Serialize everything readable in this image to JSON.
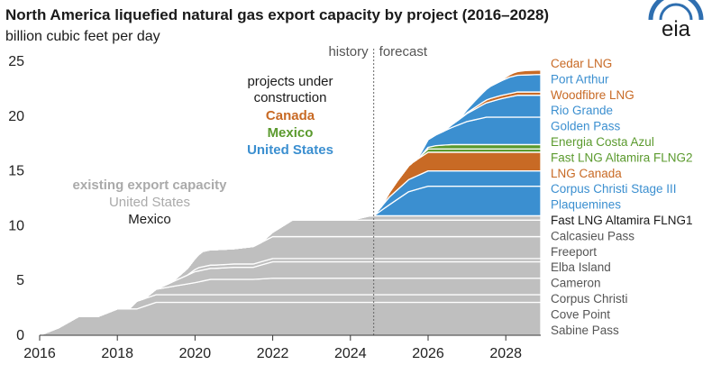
{
  "chart_data": {
    "type": "area",
    "title": "North America liquefied natural gas export capacity by project (2016–2028)",
    "subtitle": "billion cubic feet per day",
    "xlabel": "",
    "ylabel": "",
    "xlim": [
      2016,
      2028.9
    ],
    "ylim": [
      0,
      25
    ],
    "x_ticks": [
      2016,
      2018,
      2020,
      2022,
      2024,
      2026,
      2028
    ],
    "y_ticks": [
      0,
      5,
      10,
      15,
      20,
      25
    ],
    "grid": false,
    "history_label": "history",
    "forecast_label": "forecast",
    "forecast_start": 2024.6,
    "logo": "eia",
    "annotations": {
      "existing_title": "existing export capacity",
      "existing_us": "United States",
      "existing_mexico": "Mexico",
      "construction_title_1": "projects under",
      "construction_title_2": "construction",
      "construction_canada": "Canada",
      "construction_mexico": "Mexico",
      "construction_us": "United States"
    },
    "colors": {
      "existing": "#bfbfbf",
      "canada": "#c86a25",
      "mexico": "#5b9a2e",
      "united_states": "#3b8fd0",
      "existing_text": "#aaaaaa",
      "mexico_existing_text": "#1a1a1a"
    },
    "series": [
      {
        "name": "Sabine Pass",
        "group": "existing",
        "country": "united_states",
        "points": [
          [
            2016.0,
            0
          ],
          [
            2016.5,
            0.7
          ],
          [
            2017.0,
            1.7
          ],
          [
            2017.5,
            1.7
          ],
          [
            2018.0,
            2.4
          ],
          [
            2018.5,
            2.4
          ],
          [
            2019.0,
            3.0
          ],
          [
            2028.9,
            3.0
          ]
        ]
      },
      {
        "name": "Cove Point",
        "group": "existing",
        "country": "united_states",
        "points": [
          [
            2016.0,
            0
          ],
          [
            2018.3,
            0
          ],
          [
            2018.5,
            0.7
          ],
          [
            2019.0,
            0.7
          ],
          [
            2028.9,
            0.7
          ]
        ]
      },
      {
        "name": "Corpus Christi",
        "group": "existing",
        "country": "united_states",
        "points": [
          [
            2016.0,
            0
          ],
          [
            2018.7,
            0
          ],
          [
            2019.0,
            0.5
          ],
          [
            2019.5,
            0.8
          ],
          [
            2020.0,
            1.1
          ],
          [
            2020.4,
            1.4
          ],
          [
            2021.0,
            1.4
          ],
          [
            2021.5,
            1.4
          ],
          [
            2022.0,
            1.5
          ],
          [
            2028.9,
            1.5
          ]
        ]
      },
      {
        "name": "Cameron",
        "group": "existing",
        "country": "united_states",
        "points": [
          [
            2016.0,
            0
          ],
          [
            2019.0,
            0
          ],
          [
            2019.5,
            0.5
          ],
          [
            2020.0,
            1.0
          ],
          [
            2020.5,
            1.0
          ],
          [
            2021.0,
            1.1
          ],
          [
            2021.5,
            1.1
          ],
          [
            2022.0,
            1.5
          ],
          [
            2028.9,
            1.5
          ]
        ]
      },
      {
        "name": "Elba Island",
        "group": "existing",
        "country": "united_states",
        "points": [
          [
            2016.0,
            0
          ],
          [
            2019.8,
            0
          ],
          [
            2020.1,
            0.3
          ],
          [
            2028.9,
            0.3
          ]
        ]
      },
      {
        "name": "Freeport",
        "group": "existing",
        "country": "united_states",
        "points": [
          [
            2016.0,
            0
          ],
          [
            2019.4,
            0
          ],
          [
            2019.8,
            0.6
          ],
          [
            2020.2,
            1.4
          ],
          [
            2021.0,
            1.4
          ],
          [
            2021.5,
            1.6
          ],
          [
            2022.0,
            2.0
          ],
          [
            2028.9,
            2.0
          ]
        ]
      },
      {
        "name": "Calcasieu Pass",
        "group": "existing",
        "country": "united_states",
        "points": [
          [
            2016.0,
            0
          ],
          [
            2021.7,
            0
          ],
          [
            2022.0,
            0.4
          ],
          [
            2022.5,
            1.5
          ],
          [
            2028.9,
            1.5
          ]
        ]
      },
      {
        "name": "Fast LNG Altamira FLNG1",
        "group": "existing",
        "country": "mexico",
        "points": [
          [
            2016.0,
            0
          ],
          [
            2024.0,
            0
          ],
          [
            2024.5,
            0.4
          ],
          [
            2028.9,
            0.4
          ]
        ]
      },
      {
        "name": "Plaquemines",
        "group": "construction",
        "country": "united_states",
        "points": [
          [
            2016.0,
            0
          ],
          [
            2024.6,
            0
          ],
          [
            2025.0,
            1.0
          ],
          [
            2025.5,
            2.2
          ],
          [
            2026.0,
            2.7
          ],
          [
            2028.9,
            2.7
          ]
        ]
      },
      {
        "name": "Corpus Christi Stage III",
        "group": "construction",
        "country": "united_states",
        "points": [
          [
            2016.0,
            0
          ],
          [
            2024.6,
            0
          ],
          [
            2025.0,
            0.7
          ],
          [
            2025.5,
            1.1
          ],
          [
            2026.0,
            1.4
          ],
          [
            2028.9,
            1.4
          ]
        ]
      },
      {
        "name": "LNG Canada",
        "group": "construction",
        "country": "canada",
        "points": [
          [
            2016.0,
            0
          ],
          [
            2024.8,
            0
          ],
          [
            2025.2,
            0.8
          ],
          [
            2025.6,
            1.4
          ],
          [
            2026.0,
            1.7
          ],
          [
            2028.9,
            1.7
          ]
        ]
      },
      {
        "name": "Fast LNG Altamira FLNG2",
        "group": "construction",
        "country": "mexico",
        "points": [
          [
            2016.0,
            0
          ],
          [
            2025.7,
            0
          ],
          [
            2026.0,
            0.3
          ],
          [
            2028.9,
            0.3
          ]
        ]
      },
      {
        "name": "Energia Costa Azul",
        "group": "construction",
        "country": "mexico",
        "points": [
          [
            2016.0,
            0
          ],
          [
            2025.8,
            0
          ],
          [
            2026.2,
            0.3
          ],
          [
            2026.6,
            0.4
          ],
          [
            2028.9,
            0.4
          ]
        ]
      },
      {
        "name": "Golden Pass",
        "group": "construction",
        "country": "united_states",
        "points": [
          [
            2016.0,
            0
          ],
          [
            2025.7,
            0
          ],
          [
            2026.0,
            0.7
          ],
          [
            2026.5,
            1.4
          ],
          [
            2027.0,
            2.1
          ],
          [
            2027.5,
            2.5
          ],
          [
            2028.9,
            2.5
          ]
        ]
      },
      {
        "name": "Rio Grande",
        "group": "construction",
        "country": "united_states",
        "points": [
          [
            2016.0,
            0
          ],
          [
            2026.4,
            0
          ],
          [
            2026.9,
            0.6
          ],
          [
            2027.4,
            1.2
          ],
          [
            2027.9,
            1.7
          ],
          [
            2028.3,
            2.0
          ],
          [
            2028.9,
            2.0
          ]
        ]
      },
      {
        "name": "Woodfibre LNG",
        "group": "construction",
        "country": "canada",
        "points": [
          [
            2016.0,
            0
          ],
          [
            2026.8,
            0
          ],
          [
            2027.2,
            0.15
          ],
          [
            2027.6,
            0.3
          ],
          [
            2028.9,
            0.3
          ]
        ]
      },
      {
        "name": "Port Arthur",
        "group": "construction",
        "country": "united_states",
        "points": [
          [
            2016.0,
            0
          ],
          [
            2026.8,
            0
          ],
          [
            2027.2,
            0.6
          ],
          [
            2027.6,
            1.1
          ],
          [
            2028.1,
            1.5
          ],
          [
            2028.9,
            1.6
          ]
        ]
      },
      {
        "name": "Cedar LNG",
        "group": "construction",
        "country": "canada",
        "points": [
          [
            2016.0,
            0
          ],
          [
            2027.8,
            0
          ],
          [
            2028.2,
            0.3
          ],
          [
            2028.5,
            0.4
          ],
          [
            2028.9,
            0.4
          ]
        ]
      }
    ],
    "legend": [
      {
        "label": "Cedar LNG",
        "country": "canada"
      },
      {
        "label": "Port Arthur",
        "country": "united_states"
      },
      {
        "label": "Woodfibre LNG",
        "country": "canada"
      },
      {
        "label": "Rio Grande",
        "country": "united_states"
      },
      {
        "label": "Golden Pass",
        "country": "united_states"
      },
      {
        "label": "Energia Costa Azul",
        "country": "mexico"
      },
      {
        "label": "Fast LNG Altamira FLNG2",
        "country": "mexico"
      },
      {
        "label": "LNG Canada",
        "country": "canada"
      },
      {
        "label": "Corpus Christi Stage III",
        "country": "united_states"
      },
      {
        "label": "Plaquemines",
        "country": "united_states"
      },
      {
        "label": "Fast LNG Altamira FLNG1",
        "country": "mexico_existing"
      },
      {
        "label": "Calcasieu Pass",
        "country": "existing"
      },
      {
        "label": "Freeport",
        "country": "existing"
      },
      {
        "label": "Elba Island",
        "country": "existing"
      },
      {
        "label": "Cameron",
        "country": "existing"
      },
      {
        "label": "Corpus Christi",
        "country": "existing"
      },
      {
        "label": "Cove Point",
        "country": "existing"
      },
      {
        "label": "Sabine Pass",
        "country": "existing"
      }
    ]
  }
}
